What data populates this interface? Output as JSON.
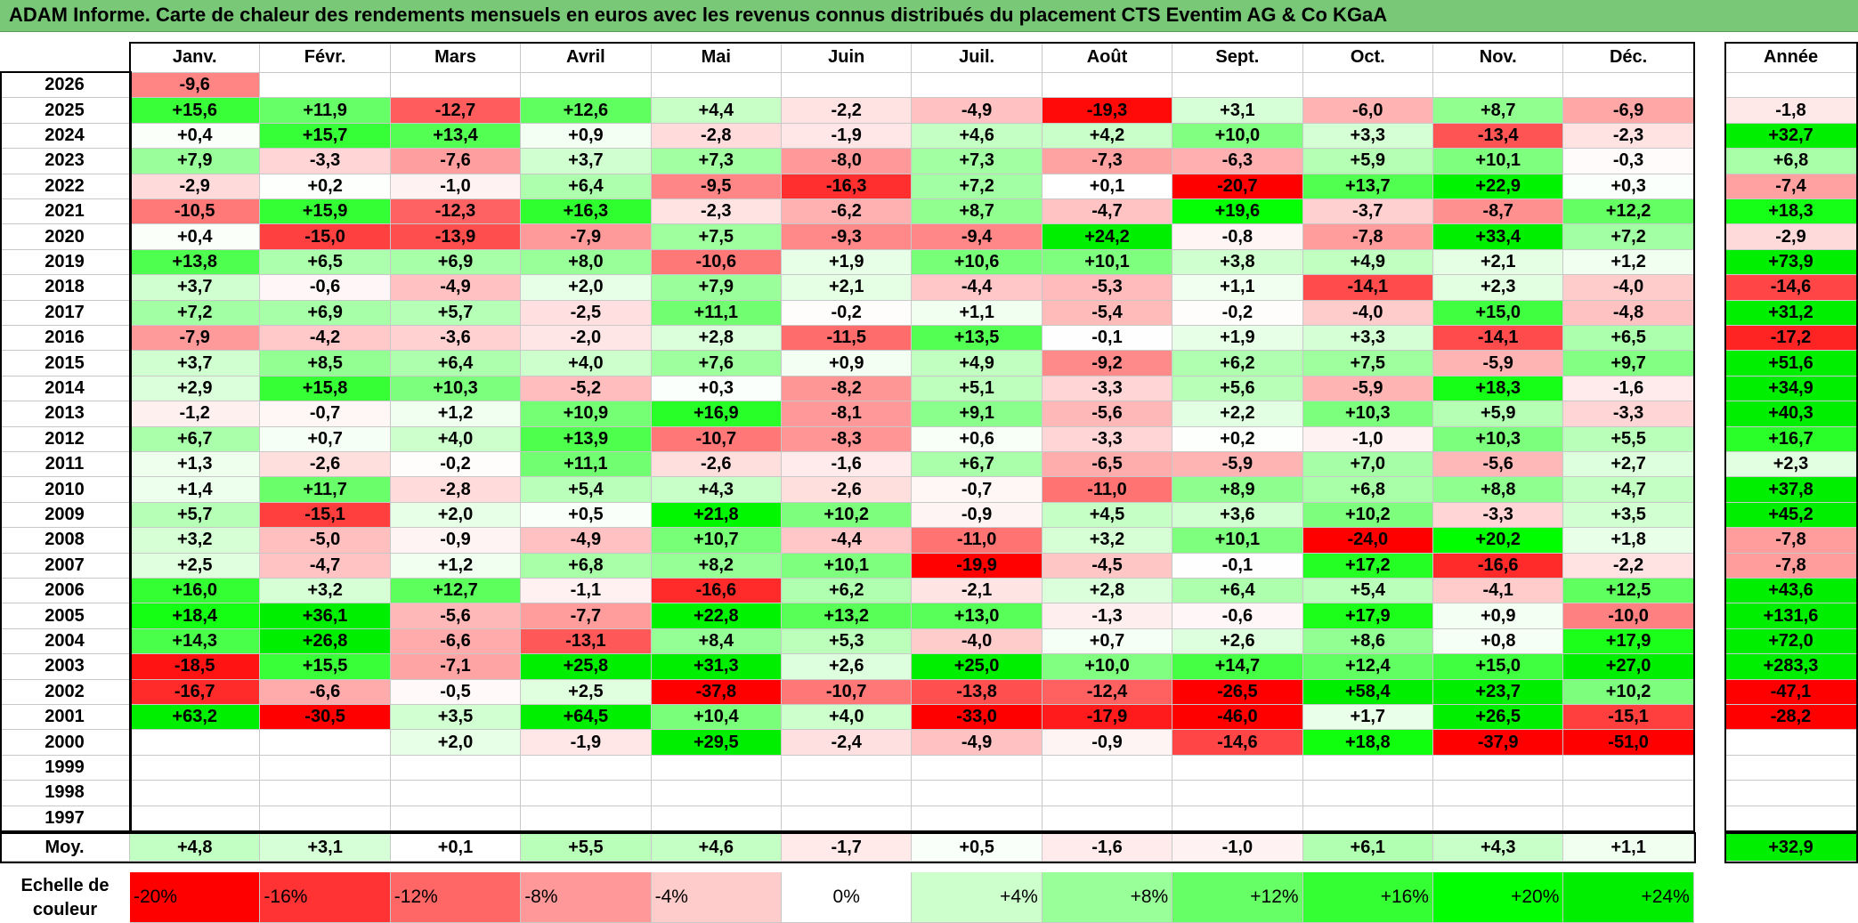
{
  "title": "ADAM Informe. Carte de chaleur des rendements mensuels en euros avec les revenus connus distribués du placement CTS Eventim AG & Co KGaA",
  "chart_data": {
    "type": "heatmap",
    "title": "ADAM Informe. Carte de chaleur des rendements mensuels en euros avec les revenus connus distribués du placement CTS Eventim AG & Co KGaA",
    "months": [
      "Janv.",
      "Févr.",
      "Mars",
      "Avril",
      "Mai",
      "Juin",
      "Juil.",
      "Août",
      "Sept.",
      "Oct.",
      "Nov.",
      "Déc."
    ],
    "year_header": "Année",
    "rows": [
      {
        "year": "2026",
        "months": [
          "-9,6",
          "",
          "",
          "",
          "",
          "",
          "",
          "",
          "",
          "",
          "",
          ""
        ],
        "annual": ""
      },
      {
        "year": "2025",
        "months": [
          "+15,6",
          "+11,9",
          "-12,7",
          "+12,6",
          "+4,4",
          "-2,2",
          "-4,9",
          "-19,3",
          "+3,1",
          "-6,0",
          "+8,7",
          "-6,9"
        ],
        "annual": "-1,8"
      },
      {
        "year": "2024",
        "months": [
          "+0,4",
          "+15,7",
          "+13,4",
          "+0,9",
          "-2,8",
          "-1,9",
          "+4,6",
          "+4,2",
          "+10,0",
          "+3,3",
          "-13,4",
          "-2,3"
        ],
        "annual": "+32,7"
      },
      {
        "year": "2023",
        "months": [
          "+7,9",
          "-3,3",
          "-7,6",
          "+3,7",
          "+7,3",
          "-8,0",
          "+7,3",
          "-7,3",
          "-6,3",
          "+5,9",
          "+10,1",
          "-0,3"
        ],
        "annual": "+6,8"
      },
      {
        "year": "2022",
        "months": [
          "-2,9",
          "+0,2",
          "-1,0",
          "+6,4",
          "-9,5",
          "-16,3",
          "+7,2",
          "+0,1",
          "-20,7",
          "+13,7",
          "+22,9",
          "+0,3"
        ],
        "annual": "-7,4"
      },
      {
        "year": "2021",
        "months": [
          "-10,5",
          "+15,9",
          "-12,3",
          "+16,3",
          "-2,3",
          "-6,2",
          "+8,7",
          "-4,7",
          "+19,6",
          "-3,7",
          "-8,7",
          "+12,2"
        ],
        "annual": "+18,3"
      },
      {
        "year": "2020",
        "months": [
          "+0,4",
          "-15,0",
          "-13,9",
          "-7,9",
          "+7,5",
          "-9,3",
          "-9,4",
          "+24,2",
          "-0,8",
          "-7,8",
          "+33,4",
          "+7,2"
        ],
        "annual": "-2,9"
      },
      {
        "year": "2019",
        "months": [
          "+13,8",
          "+6,5",
          "+6,9",
          "+8,0",
          "-10,6",
          "+1,9",
          "+10,6",
          "+10,1",
          "+3,8",
          "+4,9",
          "+2,1",
          "+1,2"
        ],
        "annual": "+73,9"
      },
      {
        "year": "2018",
        "months": [
          "+3,7",
          "-0,6",
          "-4,9",
          "+2,0",
          "+7,9",
          "+2,1",
          "-4,4",
          "-5,3",
          "+1,1",
          "-14,1",
          "+2,3",
          "-4,0"
        ],
        "annual": "-14,6"
      },
      {
        "year": "2017",
        "months": [
          "+7,2",
          "+6,9",
          "+5,7",
          "-2,5",
          "+11,1",
          "-0,2",
          "+1,1",
          "-5,4",
          "-0,2",
          "-4,0",
          "+15,0",
          "-4,8"
        ],
        "annual": "+31,2"
      },
      {
        "year": "2016",
        "months": [
          "-7,9",
          "-4,2",
          "-3,6",
          "-2,0",
          "+2,8",
          "-11,5",
          "+13,5",
          "-0,1",
          "+1,9",
          "+3,3",
          "-14,1",
          "+6,5"
        ],
        "annual": "-17,2"
      },
      {
        "year": "2015",
        "months": [
          "+3,7",
          "+8,5",
          "+6,4",
          "+4,0",
          "+7,6",
          "+0,9",
          "+4,9",
          "-9,2",
          "+6,2",
          "+7,5",
          "-5,9",
          "+9,7"
        ],
        "annual": "+51,6"
      },
      {
        "year": "2014",
        "months": [
          "+2,9",
          "+15,8",
          "+10,3",
          "-5,2",
          "+0,3",
          "-8,2",
          "+5,1",
          "-3,3",
          "+5,6",
          "-5,9",
          "+18,3",
          "-1,6"
        ],
        "annual": "+34,9"
      },
      {
        "year": "2013",
        "months": [
          "-1,2",
          "-0,7",
          "+1,2",
          "+10,9",
          "+16,9",
          "-8,1",
          "+9,1",
          "-5,6",
          "+2,2",
          "+10,3",
          "+5,9",
          "-3,3"
        ],
        "annual": "+40,3"
      },
      {
        "year": "2012",
        "months": [
          "+6,7",
          "+0,7",
          "+4,0",
          "+13,9",
          "-10,7",
          "-8,3",
          "+0,6",
          "-3,3",
          "+0,2",
          "-1,0",
          "+10,3",
          "+5,5"
        ],
        "annual": "+16,7"
      },
      {
        "year": "2011",
        "months": [
          "+1,3",
          "-2,6",
          "-0,2",
          "+11,1",
          "-2,6",
          "-1,6",
          "+6,7",
          "-6,5",
          "-5,9",
          "+7,0",
          "-5,6",
          "+2,7"
        ],
        "annual": "+2,3"
      },
      {
        "year": "2010",
        "months": [
          "+1,4",
          "+11,7",
          "-2,8",
          "+5,4",
          "+4,3",
          "-2,6",
          "-0,7",
          "-11,0",
          "+8,9",
          "+6,8",
          "+8,8",
          "+4,7"
        ],
        "annual": "+37,8"
      },
      {
        "year": "2009",
        "months": [
          "+5,7",
          "-15,1",
          "+2,0",
          "+0,5",
          "+21,8",
          "+10,2",
          "-0,9",
          "+4,5",
          "+3,6",
          "+10,2",
          "-3,3",
          "+3,5"
        ],
        "annual": "+45,2"
      },
      {
        "year": "2008",
        "months": [
          "+3,2",
          "-5,0",
          "-0,9",
          "-4,9",
          "+10,7",
          "-4,4",
          "-11,0",
          "+3,2",
          "+10,1",
          "-24,0",
          "+20,2",
          "+1,8"
        ],
        "annual": "-7,8"
      },
      {
        "year": "2007",
        "months": [
          "+2,5",
          "-4,7",
          "+1,2",
          "+6,8",
          "+8,2",
          "+10,1",
          "-19,9",
          "-4,5",
          "-0,1",
          "+17,2",
          "-16,6",
          "-2,2"
        ],
        "annual": "-7,8"
      },
      {
        "year": "2006",
        "months": [
          "+16,0",
          "+3,2",
          "+12,7",
          "-1,1",
          "-16,6",
          "+6,2",
          "-2,1",
          "+2,8",
          "+6,4",
          "+5,4",
          "-4,1",
          "+12,5"
        ],
        "annual": "+43,6"
      },
      {
        "year": "2005",
        "months": [
          "+18,4",
          "+36,1",
          "-5,6",
          "-7,7",
          "+22,8",
          "+13,2",
          "+13,0",
          "-1,3",
          "-0,6",
          "+17,9",
          "+0,9",
          "-10,0"
        ],
        "annual": "+131,6"
      },
      {
        "year": "2004",
        "months": [
          "+14,3",
          "+26,8",
          "-6,6",
          "-13,1",
          "+8,4",
          "+5,3",
          "-4,0",
          "+0,7",
          "+2,6",
          "+8,6",
          "+0,8",
          "+17,9"
        ],
        "annual": "+72,0"
      },
      {
        "year": "2003",
        "months": [
          "-18,5",
          "+15,5",
          "-7,1",
          "+25,8",
          "+31,3",
          "+2,6",
          "+25,0",
          "+10,0",
          "+14,7",
          "+12,4",
          "+15,0",
          "+27,0"
        ],
        "annual": "+283,3"
      },
      {
        "year": "2002",
        "months": [
          "-16,7",
          "-6,6",
          "-0,5",
          "+2,5",
          "-37,8",
          "-10,7",
          "-13,8",
          "-12,4",
          "-26,5",
          "+58,4",
          "+23,7",
          "+10,2"
        ],
        "annual": "-47,1"
      },
      {
        "year": "2001",
        "months": [
          "+63,2",
          "-30,5",
          "+3,5",
          "+64,5",
          "+10,4",
          "+4,0",
          "-33,0",
          "-17,9",
          "-46,0",
          "+1,7",
          "+26,5",
          "-15,1"
        ],
        "annual": "-28,2"
      },
      {
        "year": "2000",
        "months": [
          "",
          "",
          "+2,0",
          "-1,9",
          "+29,5",
          "-2,4",
          "-4,9",
          "-0,9",
          "-14,6",
          "+18,8",
          "-37,9",
          "-51,0"
        ],
        "annual": ""
      },
      {
        "year": "1999",
        "months": [
          "",
          "",
          "",
          "",
          "",
          "",
          "",
          "",
          "",
          "",
          "",
          ""
        ],
        "annual": ""
      },
      {
        "year": "1998",
        "months": [
          "",
          "",
          "",
          "",
          "",
          "",
          "",
          "",
          "",
          "",
          "",
          ""
        ],
        "annual": ""
      },
      {
        "year": "1997",
        "months": [
          "",
          "",
          "",
          "",
          "",
          "",
          "",
          "",
          "",
          "",
          "",
          ""
        ],
        "annual": ""
      }
    ],
    "average": {
      "label": "Moy.",
      "months": [
        "+4,8",
        "+3,1",
        "+0,1",
        "+5,5",
        "+4,6",
        "-1,7",
        "+0,5",
        "-1,6",
        "-1,0",
        "+6,1",
        "+4,3",
        "+1,1"
      ],
      "annual": "+32,9"
    },
    "color_scale": {
      "label": "Echelle de couleur",
      "stops": [
        {
          "label": "-20%",
          "value": -20,
          "color": "#ff0000"
        },
        {
          "label": "-16%",
          "value": -16,
          "color": "#ff3333"
        },
        {
          "label": "-12%",
          "value": -12,
          "color": "#ff6666"
        },
        {
          "label": "-8%",
          "value": -8,
          "color": "#ff9999"
        },
        {
          "label": "-4%",
          "value": -4,
          "color": "#ffcccc"
        },
        {
          "label": "0%",
          "value": 0,
          "color": "#ffffff"
        },
        {
          "label": "+4%",
          "value": 4,
          "color": "#ccffcc"
        },
        {
          "label": "+8%",
          "value": 8,
          "color": "#99ff99"
        },
        {
          "label": "+12%",
          "value": 12,
          "color": "#66ff66"
        },
        {
          "label": "+16%",
          "value": 16,
          "color": "#33ff33"
        },
        {
          "label": "+20%",
          "value": 20,
          "color": "#00ff00"
        },
        {
          "label": "+24%",
          "value": 24,
          "color": "#00ee00"
        }
      ]
    }
  }
}
